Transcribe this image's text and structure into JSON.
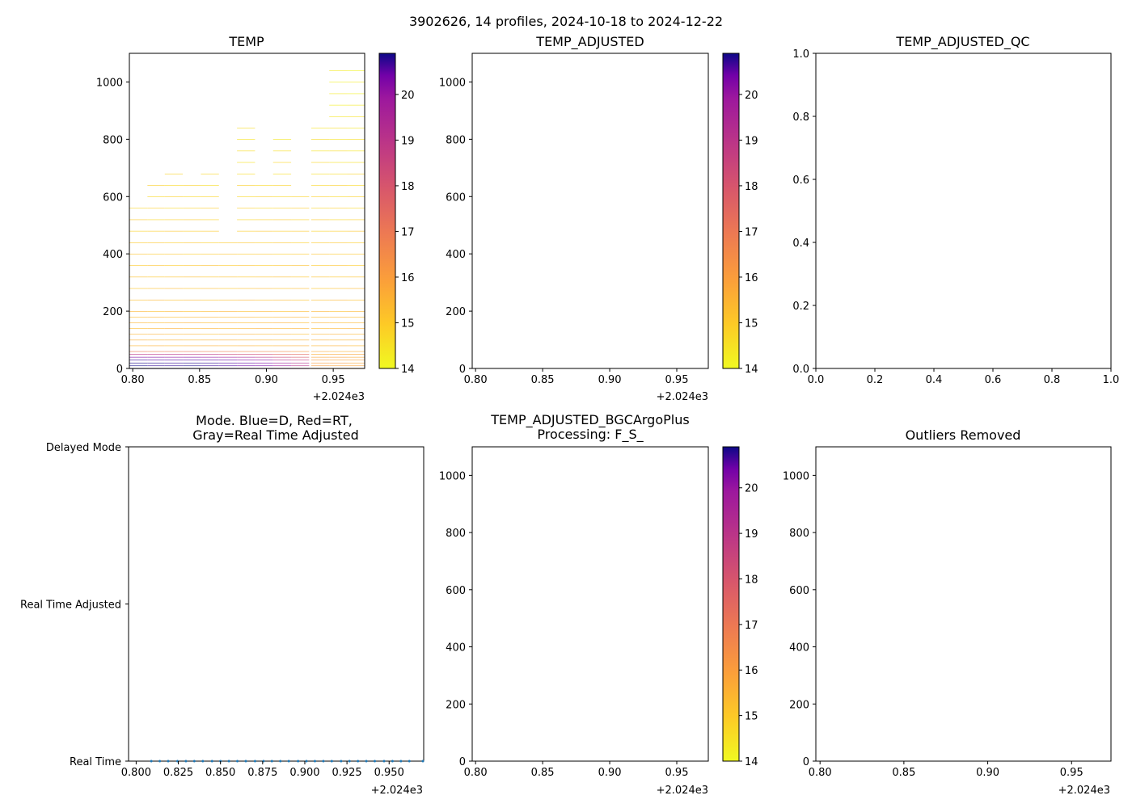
{
  "figure_title": "3902626, 14 profiles, 2024-10-18 to 2024-12-22",
  "chart_data": [
    {
      "id": "temp",
      "type": "heatmap",
      "title": "TEMP",
      "x_offset_label": "+2.024e3",
      "xlim": [
        0.7975,
        0.9735
      ],
      "ylim": [
        1100,
        0
      ],
      "x_ticks": [
        "0.80",
        "0.85",
        "0.90",
        "0.95"
      ],
      "x_tick_values": [
        0.8,
        0.85,
        0.9,
        0.95
      ],
      "y_ticks": [
        "0",
        "200",
        "400",
        "600",
        "800",
        "1000"
      ],
      "y_tick_values": [
        0,
        200,
        400,
        600,
        800,
        1000
      ],
      "colorscale": "plasma_r",
      "clim": [
        14.0,
        20.9
      ],
      "colorbar_ticks": [
        "14",
        "15",
        "16",
        "17",
        "18",
        "19",
        "20"
      ],
      "colorbar_tick_values": [
        14,
        15,
        16,
        17,
        18,
        19,
        20
      ],
      "profiles": [
        {
          "x0": 0.7975,
          "x1": 0.811,
          "max_depth": 595
        },
        {
          "x0": 0.811,
          "x1": 0.824,
          "max_depth": 670
        },
        {
          "x0": 0.824,
          "x1": 0.8375,
          "max_depth": 720
        },
        {
          "x0": 0.8375,
          "x1": 0.851,
          "max_depth": 648
        },
        {
          "x0": 0.851,
          "x1": 0.8645,
          "max_depth": 715
        },
        {
          "x0": 0.8645,
          "x1": 0.878,
          "max_depth": 480
        },
        {
          "x0": 0.878,
          "x1": 0.8915,
          "max_depth": 860
        },
        {
          "x0": 0.8915,
          "x1": 0.905,
          "max_depth": 678
        },
        {
          "x0": 0.905,
          "x1": 0.9185,
          "max_depth": 833
        },
        {
          "x0": 0.9185,
          "x1": 0.932,
          "max_depth": 608
        },
        {
          "x0": 0.9335,
          "x1": 0.947,
          "max_depth": 870
        },
        {
          "x0": 0.947,
          "x1": 0.9605,
          "max_depth": 1050
        },
        {
          "x0": 0.9605,
          "x1": 0.9735,
          "max_depth": 1053
        }
      ],
      "surface_temps": [
        20.8,
        20.6,
        20.5,
        20.6,
        20.4,
        20.0,
        19.6,
        19.3,
        18.5,
        18.0,
        15.6,
        15.6,
        15.5
      ]
    },
    {
      "id": "temp_adjusted",
      "type": "heatmap",
      "title": "TEMP_ADJUSTED",
      "x_offset_label": "+2.024e3",
      "xlim": [
        0.7975,
        0.9735
      ],
      "ylim": [
        1100,
        0
      ],
      "x_ticks": [
        "0.80",
        "0.85",
        "0.90",
        "0.95"
      ],
      "x_tick_values": [
        0.8,
        0.85,
        0.9,
        0.95
      ],
      "y_ticks": [
        "0",
        "200",
        "400",
        "600",
        "800",
        "1000"
      ],
      "y_tick_values": [
        0,
        200,
        400,
        600,
        800,
        1000
      ],
      "colorscale": "plasma_r",
      "clim": [
        14.0,
        20.9
      ],
      "colorbar_ticks": [
        "14",
        "15",
        "16",
        "17",
        "18",
        "19",
        "20"
      ],
      "colorbar_tick_values": [
        14,
        15,
        16,
        17,
        18,
        19,
        20
      ],
      "series": []
    },
    {
      "id": "temp_adjusted_qc",
      "type": "scatter",
      "title": "TEMP_ADJUSTED_QC",
      "xlim": [
        0,
        1
      ],
      "ylim": [
        0,
        1
      ],
      "x_ticks": [
        "0.0",
        "0.2",
        "0.4",
        "0.6",
        "0.8",
        "1.0"
      ],
      "x_tick_values": [
        0,
        0.2,
        0.4,
        0.6,
        0.8,
        1.0
      ],
      "y_ticks": [
        "0.0",
        "0.2",
        "0.4",
        "0.6",
        "0.8",
        "1.0"
      ],
      "y_tick_values": [
        0,
        0.2,
        0.4,
        0.6,
        0.8,
        1.0
      ],
      "series": []
    },
    {
      "id": "mode",
      "type": "scatter",
      "title_lines": [
        "Mode. Blue=D, Red=RT,",
        "Gray=Real Time Adjusted"
      ],
      "x_offset_label": "+2.024e3",
      "xlim": [
        0.7955,
        0.9705
      ],
      "x_ticks": [
        "0.800",
        "0.825",
        "0.850",
        "0.875",
        "0.900",
        "0.925",
        "0.950"
      ],
      "x_tick_values": [
        0.8,
        0.825,
        0.85,
        0.875,
        0.9,
        0.925,
        0.95
      ],
      "y_categories": [
        "Delayed Mode",
        "Real Time Adjusted",
        "Real Time"
      ],
      "marker_color": "#1f77b4",
      "x": [
        0.809,
        0.814,
        0.819,
        0.8245,
        0.8295,
        0.8345,
        0.8395,
        0.845,
        0.85,
        0.855,
        0.86,
        0.865,
        0.8705,
        0.8755,
        0.8805,
        0.8855,
        0.8905,
        0.896,
        0.901,
        0.906,
        0.911,
        0.916,
        0.9215,
        0.9265,
        0.9315,
        0.9365,
        0.9415,
        0.947,
        0.952,
        0.957,
        0.962,
        0.97
      ],
      "y": [
        "Real Time",
        "Real Time",
        "Real Time",
        "Real Time",
        "Real Time",
        "Real Time",
        "Real Time",
        "Real Time",
        "Real Time",
        "Real Time",
        "Real Time",
        "Real Time",
        "Real Time",
        "Real Time",
        "Real Time",
        "Real Time",
        "Real Time",
        "Real Time",
        "Real Time",
        "Real Time",
        "Real Time",
        "Real Time",
        "Real Time",
        "Real Time",
        "Real Time",
        "Real Time",
        "Real Time",
        "Real Time",
        "Real Time",
        "Real Time",
        "Real Time",
        "Real Time"
      ]
    },
    {
      "id": "temp_adjusted_bgc",
      "type": "heatmap",
      "title_lines": [
        "TEMP_ADJUSTED_BGCArgoPlus",
        "Processing: F_S_"
      ],
      "x_offset_label": "+2.024e3",
      "xlim": [
        0.7975,
        0.9735
      ],
      "ylim": [
        1100,
        0
      ],
      "x_ticks": [
        "0.80",
        "0.85",
        "0.90",
        "0.95"
      ],
      "x_tick_values": [
        0.8,
        0.85,
        0.9,
        0.95
      ],
      "y_ticks": [
        "0",
        "200",
        "400",
        "600",
        "800",
        "1000"
      ],
      "y_tick_values": [
        0,
        200,
        400,
        600,
        800,
        1000
      ],
      "colorscale": "plasma_r",
      "clim": [
        14.0,
        20.9
      ],
      "colorbar_ticks": [
        "14",
        "15",
        "16",
        "17",
        "18",
        "19",
        "20"
      ],
      "colorbar_tick_values": [
        14,
        15,
        16,
        17,
        18,
        19,
        20
      ],
      "series": []
    },
    {
      "id": "outliers",
      "type": "scatter",
      "title": "Outliers Removed",
      "x_offset_label": "+2.024e3",
      "xlim": [
        0.7975,
        0.9735
      ],
      "ylim": [
        1100,
        0
      ],
      "x_ticks": [
        "0.80",
        "0.85",
        "0.90",
        "0.95"
      ],
      "x_tick_values": [
        0.8,
        0.85,
        0.9,
        0.95
      ],
      "y_ticks": [
        "0",
        "200",
        "400",
        "600",
        "800",
        "1000"
      ],
      "y_tick_values": [
        0,
        200,
        400,
        600,
        800,
        1000
      ],
      "series": []
    }
  ]
}
